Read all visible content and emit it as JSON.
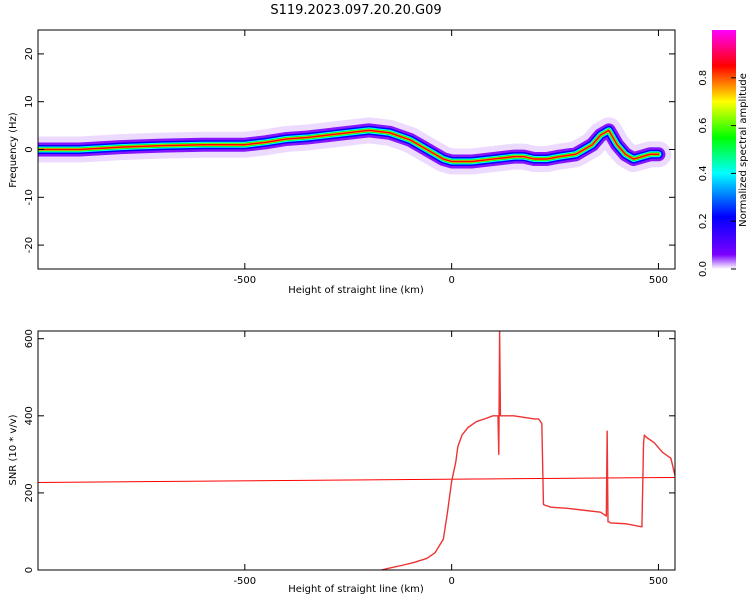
{
  "title": "S119.2023.097.20.20.G09",
  "chart_data": [
    {
      "type": "heatmap",
      "xlabel": "Height of straight line (km)",
      "ylabel": "Frequency (Hz)",
      "xlim": [
        -1000,
        540
      ],
      "ylim": [
        -25,
        25
      ],
      "x_ticks": [
        -500,
        0,
        500
      ],
      "y_ticks": [
        -20,
        -10,
        0,
        10,
        20
      ],
      "colorbar": {
        "label": "Normalized spectral amplitude",
        "range": [
          0.0,
          1.0
        ],
        "ticks": [
          0.0,
          0.2,
          0.4,
          0.6,
          0.8
        ],
        "tick_labels": [
          "0.0",
          "0.2",
          "0.4",
          "0.6",
          "0.8"
        ],
        "colormap": [
          "#ffffff",
          "#7b00ff",
          "#0000ff",
          "#00ffff",
          "#00ff00",
          "#ffff00",
          "#ff0000",
          "#ff00ff"
        ]
      },
      "ridge": {
        "x": [
          -1000,
          -900,
          -800,
          -700,
          -600,
          -500,
          -450,
          -400,
          -350,
          -300,
          -250,
          -200,
          -150,
          -100,
          -70,
          -40,
          -20,
          0,
          50,
          100,
          150,
          175,
          200,
          230,
          260,
          300,
          320,
          340,
          360,
          380,
          400,
          420,
          440,
          460,
          480,
          500
        ],
        "y": [
          0,
          0,
          0.5,
          0.8,
          1.0,
          1.0,
          1.5,
          2.2,
          2.5,
          3.0,
          3.5,
          4.0,
          3.5,
          2.0,
          0.5,
          -1.0,
          -2.0,
          -2.5,
          -2.5,
          -2.0,
          -1.5,
          -1.5,
          -2.0,
          -2.0,
          -1.5,
          -1.0,
          0,
          1.0,
          3.0,
          4.0,
          1.0,
          -1.0,
          -2.0,
          -1.5,
          -1.0,
          -1.0
        ]
      }
    },
    {
      "type": "line",
      "xlabel": "Height of straight line (km)",
      "ylabel": "SNR (10 * v/v)",
      "xlim": [
        -1000,
        540
      ],
      "ylim": [
        0,
        620
      ],
      "x_ticks": [
        -500,
        0,
        500
      ],
      "y_ticks": [
        0,
        200,
        400,
        600
      ],
      "series": [
        {
          "color": "#ff0000",
          "x": [
            -1000,
            540
          ],
          "y": [
            227,
            240
          ]
        },
        {
          "color": "#ee3333",
          "x": [
            -170,
            -150,
            -120,
            -90,
            -60,
            -40,
            -20,
            -10,
            0,
            5,
            10,
            15,
            25,
            40,
            60,
            80,
            100,
            112,
            114,
            116,
            118,
            125,
            150,
            180,
            200,
            210,
            218,
            222,
            226,
            240,
            280,
            320,
            360,
            374,
            376,
            378,
            380,
            385,
            420,
            460,
            464,
            466,
            470,
            490,
            510,
            530,
            540
          ],
          "y": [
            0,
            5,
            12,
            20,
            30,
            45,
            80,
            150,
            230,
            255,
            280,
            320,
            350,
            370,
            385,
            392,
            400,
            400,
            300,
            620,
            400,
            400,
            400,
            395,
            392,
            392,
            380,
            170,
            168,
            163,
            160,
            155,
            150,
            140,
            360,
            125,
            125,
            122,
            120,
            112,
            330,
            350,
            345,
            330,
            305,
            290,
            245
          ]
        }
      ]
    }
  ]
}
